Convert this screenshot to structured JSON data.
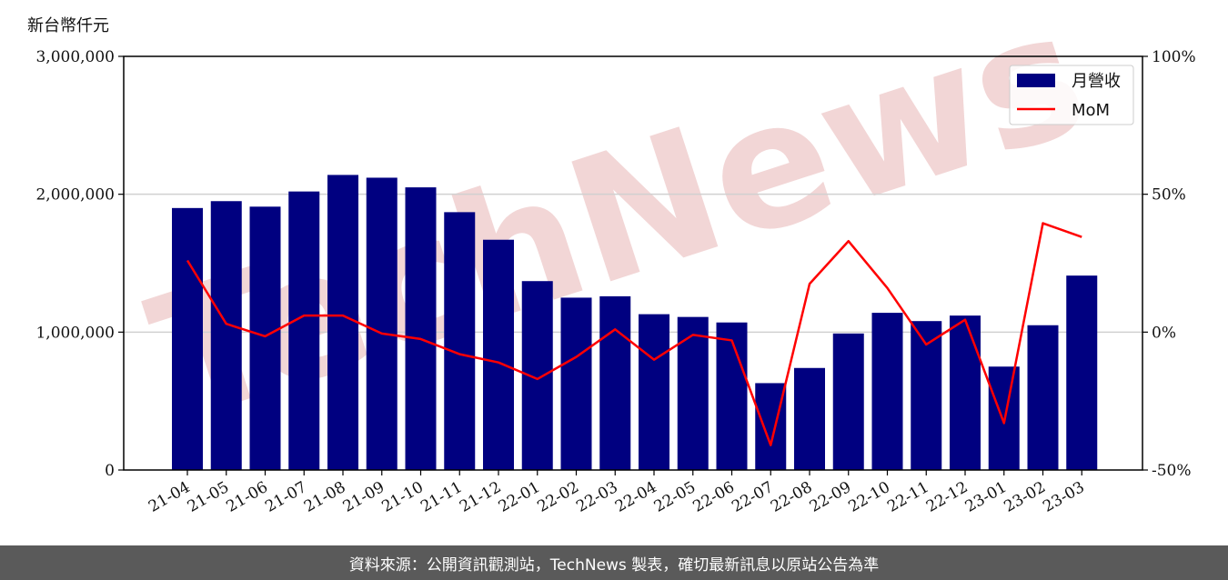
{
  "unit_label": "新台幣仟元",
  "footer_text": "資料來源：公開資訊觀測站，TechNews 製表，確切最新訊息以原站公告為準",
  "watermark_text": "TechNews",
  "colors": {
    "bar": "#000080",
    "line": "#ff0000",
    "grid": "#d0d0d0",
    "watermark": "#f2d6d6"
  },
  "chart_data": {
    "type": "bar",
    "categories": [
      "21-04",
      "21-05",
      "21-06",
      "21-07",
      "21-08",
      "21-09",
      "21-10",
      "21-11",
      "21-12",
      "22-01",
      "22-02",
      "22-03",
      "22-04",
      "22-05",
      "22-06",
      "22-07",
      "22-08",
      "22-09",
      "22-10",
      "22-11",
      "22-12",
      "23-01",
      "23-02",
      "23-03"
    ],
    "series": [
      {
        "name": "月營收",
        "axis": "left",
        "kind": "bar",
        "values": [
          1900000,
          1950000,
          1910000,
          2020000,
          2140000,
          2120000,
          2050000,
          1870000,
          1670000,
          1370000,
          1250000,
          1260000,
          1130000,
          1110000,
          1070000,
          630000,
          740000,
          990000,
          1140000,
          1080000,
          1120000,
          750000,
          1050000,
          1410000
        ]
      },
      {
        "name": "MoM",
        "axis": "right",
        "kind": "line",
        "values": [
          26,
          3,
          -1.5,
          6,
          6,
          -0.5,
          -2.5,
          -8,
          -11,
          -17,
          -9,
          1,
          -10,
          -1,
          -3,
          -41,
          17.5,
          33,
          16,
          -4.5,
          4.5,
          -33,
          39.5,
          34.5
        ]
      }
    ],
    "y_left": {
      "min": 0,
      "max": 3000000,
      "ticks": [
        0,
        1000000,
        2000000,
        3000000
      ],
      "tick_labels": [
        "0",
        "1,000,000",
        "2,000,000",
        "3,000,000"
      ]
    },
    "y_right": {
      "min": -50,
      "max": 100,
      "ticks": [
        -50,
        0,
        50,
        100
      ],
      "tick_labels": [
        "-50%",
        "0%",
        "50%",
        "100%"
      ]
    },
    "grid": "horizontal",
    "legend_position": "top-right"
  }
}
